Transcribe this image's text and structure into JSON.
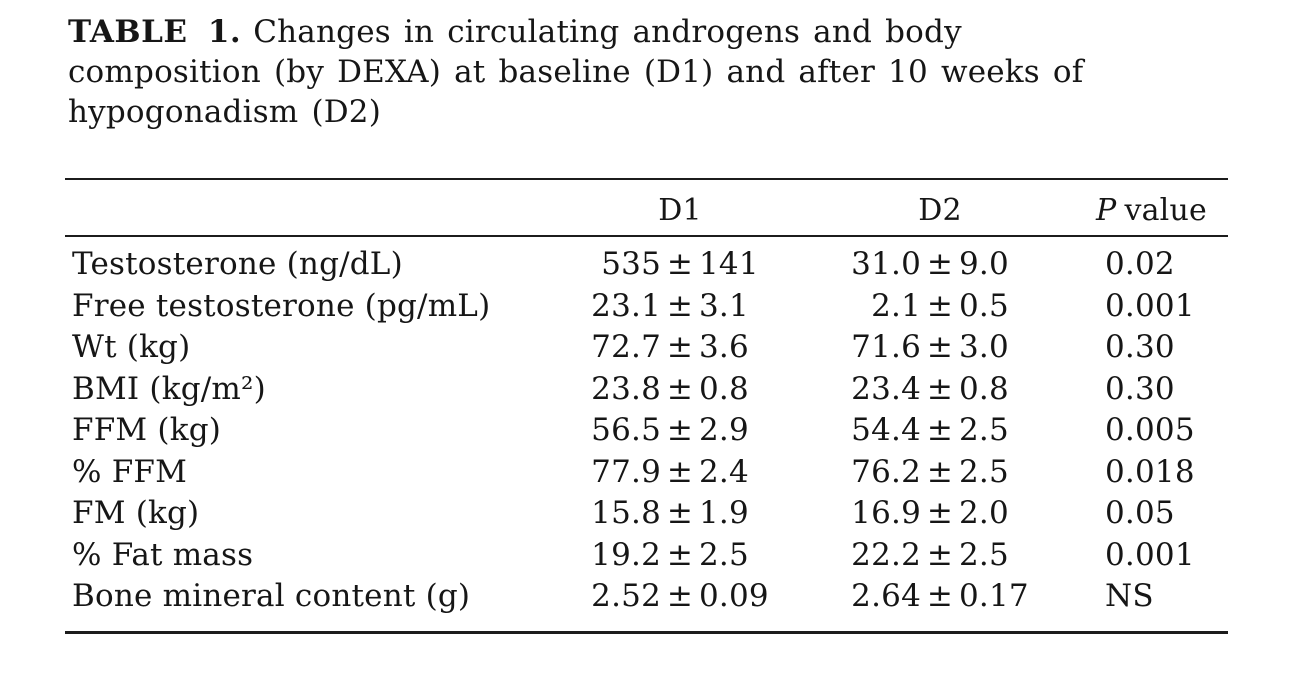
{
  "caption": {
    "label": "TABLE 1.",
    "line1": "Changes in circulating androgens and body",
    "line2": "composition (by DEXA) at baseline (D1) and after 10 weeks of",
    "line3": "hypogonadism (D2)"
  },
  "table": {
    "header": {
      "label_col": "",
      "d1": "D1",
      "d2": "D2",
      "p_prefix": "P",
      "p_suffix": "value"
    },
    "symbols": {
      "plus_minus": "±"
    },
    "rows": [
      {
        "label": "Testosterone (ng/dL)",
        "d1": {
          "m": "535",
          "s": "141"
        },
        "d2": {
          "m": "31.0",
          "s": "9.0"
        },
        "p": "0.02"
      },
      {
        "label": "Free testosterone (pg/mL)",
        "d1": {
          "m": "23.1",
          "s": "3.1"
        },
        "d2": {
          "m": "2.1",
          "s": "0.5"
        },
        "p": "0.001"
      },
      {
        "label": "Wt (kg)",
        "d1": {
          "m": "72.7",
          "s": "3.6"
        },
        "d2": {
          "m": "71.6",
          "s": "3.0"
        },
        "p": "0.30"
      },
      {
        "label": "BMI (kg/m²)",
        "d1": {
          "m": "23.8",
          "s": "0.8"
        },
        "d2": {
          "m": "23.4",
          "s": "0.8"
        },
        "p": "0.30"
      },
      {
        "label": "FFM (kg)",
        "d1": {
          "m": "56.5",
          "s": "2.9"
        },
        "d2": {
          "m": "54.4",
          "s": "2.5"
        },
        "p": "0.005"
      },
      {
        "label": "% FFM",
        "d1": {
          "m": "77.9",
          "s": "2.4"
        },
        "d2": {
          "m": "76.2",
          "s": "2.5"
        },
        "p": "0.018"
      },
      {
        "label": "FM (kg)",
        "d1": {
          "m": "15.8",
          "s": "1.9"
        },
        "d2": {
          "m": "16.9",
          "s": "2.0"
        },
        "p": "0.05"
      },
      {
        "label": "% Fat mass",
        "d1": {
          "m": "19.2",
          "s": "2.5"
        },
        "d2": {
          "m": "22.2",
          "s": "2.5"
        },
        "p": "0.001"
      },
      {
        "label": "Bone mineral content (g)",
        "d1": {
          "m": "2.52",
          "s": "0.09"
        },
        "d2": {
          "m": "2.64",
          "s": "0.17"
        },
        "p": "NS"
      }
    ]
  }
}
